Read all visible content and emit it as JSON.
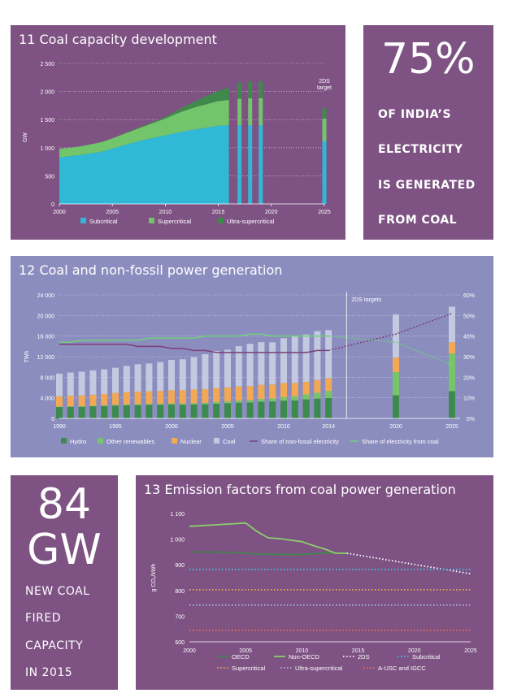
{
  "colors": {
    "purple_panel": "#7e5283",
    "blue_panel": "#8c8dbf",
    "subcritical": "#2fb9d6",
    "supercritical": "#73c56b",
    "ultra": "#3f8a4b",
    "hydro": "#3c8a4e",
    "other_renew": "#78c46b",
    "nuclear": "#f3a954",
    "coal": "#c2c9e0",
    "share_nonfossil": "#7b3f7a",
    "share_coal": "#6fd07a"
  },
  "stat1": {
    "big": "75%",
    "lines": [
      "OF INDIA’S",
      "ELECTRICITY",
      "IS GENERATED",
      "FROM COAL"
    ]
  },
  "stat2": {
    "big_line1": "84",
    "big_line2": "GW",
    "lines": [
      "NEW COAL",
      "FIRED",
      "CAPACITY",
      "IN 2015"
    ]
  },
  "chart_data": [
    {
      "type": "area",
      "title": "11 Coal capacity development",
      "ylabel": "GW",
      "ylim": [
        0,
        2500
      ],
      "yticks": [
        "0",
        "500",
        "1 000",
        "1 500",
        "2 000",
        "2 500"
      ],
      "xticks": [
        "2000",
        "2005",
        "2010",
        "2015",
        "2020",
        "2025"
      ],
      "x": [
        2000,
        2001,
        2002,
        2003,
        2004,
        2005,
        2006,
        2007,
        2008,
        2009,
        2010,
        2011,
        2012,
        2013,
        2014,
        2015,
        2016
      ],
      "series": [
        {
          "name": "Subcritical",
          "values": [
            830,
            850,
            870,
            900,
            930,
            980,
            1040,
            1090,
            1140,
            1180,
            1220,
            1260,
            1300,
            1330,
            1360,
            1390,
            1400
          ]
        },
        {
          "name": "Supercritical",
          "values": [
            150,
            150,
            155,
            160,
            170,
            185,
            200,
            220,
            240,
            270,
            300,
            340,
            370,
            400,
            420,
            440,
            450
          ]
        },
        {
          "name": "Ultra-supercritical",
          "values": [
            0,
            0,
            0,
            0,
            0,
            0,
            5,
            10,
            15,
            20,
            30,
            50,
            80,
            110,
            150,
            180,
            220
          ]
        }
      ],
      "bars": [
        {
          "x": 2017,
          "values": [
            1400,
            470,
            290
          ]
        },
        {
          "x": 2018,
          "values": [
            1400,
            480,
            300
          ]
        },
        {
          "x": 2019,
          "values": [
            1400,
            480,
            300
          ]
        },
        {
          "x": 2025,
          "values": [
            1120,
            400,
            180
          ]
        }
      ],
      "annotation": [
        "2DS",
        "target"
      ],
      "legend": "bottom"
    },
    {
      "type": "bar",
      "title": "12 Coal and non-fossil power generation",
      "ylabel": "TWh",
      "ylim": [
        0,
        24000
      ],
      "yticks": [
        "0",
        "4 000",
        "8 000",
        "12 000",
        "16 000",
        "20 000",
        "24 000"
      ],
      "y2ticks": [
        "0%",
        "10%",
        "20%",
        "30%",
        "40%",
        "50%",
        "60%"
      ],
      "xticks": [
        "1990",
        "1995",
        "2000",
        "2005",
        "2010",
        "2014",
        "2020",
        "2025"
      ],
      "annotation": "2DS targets",
      "x": [
        1990,
        1991,
        1992,
        1993,
        1994,
        1995,
        1996,
        1997,
        1998,
        1999,
        2000,
        2001,
        2002,
        2003,
        2004,
        2005,
        2006,
        2007,
        2008,
        2009,
        2010,
        2011,
        2012,
        2013,
        2014,
        2020,
        2025
      ],
      "series": [
        {
          "name": "Hydro",
          "values": [
            2200,
            2250,
            2250,
            2350,
            2400,
            2500,
            2550,
            2600,
            2650,
            2650,
            2700,
            2650,
            2700,
            2750,
            2850,
            2950,
            3050,
            3100,
            3250,
            3300,
            3450,
            3500,
            3700,
            3850,
            3950,
            4500,
            5300
          ]
        },
        {
          "name": "Other renewables",
          "values": [
            100,
            110,
            120,
            130,
            140,
            150,
            160,
            170,
            180,
            200,
            220,
            240,
            260,
            280,
            320,
            350,
            400,
            450,
            520,
            580,
            680,
            800,
            950,
            1150,
            1400,
            4500,
            7300
          ]
        },
        {
          "name": "Nuclear",
          "values": [
            2000,
            2050,
            2100,
            2150,
            2200,
            2300,
            2400,
            2450,
            2450,
            2500,
            2550,
            2600,
            2650,
            2650,
            2750,
            2750,
            2800,
            2750,
            2750,
            2700,
            2750,
            2600,
            2450,
            2450,
            2500,
            2800,
            2200
          ]
        },
        {
          "name": "Coal",
          "values": [
            4400,
            4500,
            4600,
            4700,
            4800,
            4900,
            5100,
            5300,
            5400,
            5600,
            5900,
            6000,
            6300,
            6800,
            7200,
            7300,
            7800,
            8200,
            8300,
            8200,
            8700,
            9200,
            9200,
            9500,
            9300,
            8400,
            6900
          ]
        }
      ],
      "lines": [
        {
          "name": "Share of non-fossil electricity",
          "values": [
            36,
            36,
            36,
            36,
            36,
            36,
            36,
            35,
            35,
            35,
            34,
            34,
            33,
            33,
            32,
            32,
            32,
            32,
            32,
            32,
            32,
            32,
            32,
            33,
            33,
            41,
            51
          ]
        },
        {
          "name": "Share of electricity from coal",
          "values": [
            37,
            37,
            38,
            38,
            38,
            38,
            38,
            38,
            39,
            39,
            39,
            39,
            39,
            40,
            40,
            40,
            40,
            41,
            41,
            40,
            40,
            40,
            40,
            40,
            40,
            37,
            26
          ]
        }
      ],
      "legend": "bottom"
    },
    {
      "type": "line",
      "title": "13 Emission factors from coal power generation",
      "ylabel": "g CO₂/kWh",
      "ylim": [
        600,
        1100
      ],
      "yticks": [
        "600",
        "700",
        "800",
        "900",
        "1 000",
        "1 100"
      ],
      "xticks": [
        "2000",
        "2005",
        "2010",
        "2015",
        "2020",
        "2025"
      ],
      "series": [
        {
          "name": "OECD",
          "x": [
            2000,
            2002,
            2004,
            2006,
            2008,
            2010,
            2012,
            2014
          ],
          "values": [
            950,
            950,
            948,
            942,
            940,
            940,
            946,
            945
          ]
        },
        {
          "name": "Non-OECD",
          "x": [
            2000,
            2002,
            2004,
            2005,
            2006,
            2007,
            2008,
            2010,
            2011,
            2012,
            2013,
            2014
          ],
          "values": [
            1050,
            1055,
            1060,
            1063,
            1030,
            1005,
            1002,
            990,
            975,
            962,
            945,
            945
          ]
        },
        {
          "name": "2DS",
          "x": [
            2014,
            2025
          ],
          "values": [
            945,
            865
          ]
        },
        {
          "name": "Subcritical",
          "x": [
            2000,
            2025
          ],
          "values": [
            882,
            882
          ]
        },
        {
          "name": "Supercritical",
          "x": [
            2000,
            2025
          ],
          "values": [
            803,
            803
          ]
        },
        {
          "name": "Ultra-supercritical",
          "x": [
            2000,
            2025
          ],
          "values": [
            743,
            743
          ]
        },
        {
          "name": "A-USC and IGCC",
          "x": [
            2000,
            2025
          ],
          "values": [
            645,
            645
          ]
        }
      ],
      "legend": "bottom"
    }
  ]
}
